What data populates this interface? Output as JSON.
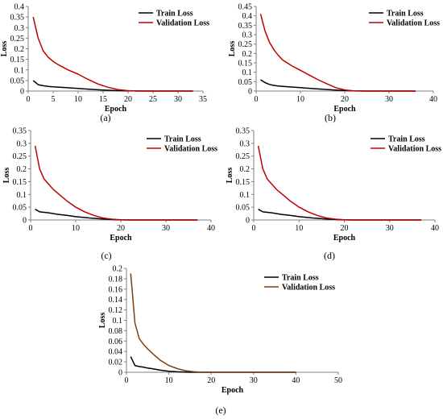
{
  "legend_labels": {
    "train": "Train Loss",
    "validation": "Validation Loss"
  },
  "chart_data": [
    {
      "type": "line",
      "caption": "(a)",
      "xlabel": "Epoch",
      "ylabel": "Loss",
      "xlim": [
        0,
        35
      ],
      "ylim": [
        0,
        0.4
      ],
      "xticks": [
        "0",
        "5",
        "10",
        "15",
        "20",
        "25",
        "30",
        "35"
      ],
      "yticks": [
        "0",
        "0.05",
        "0.1",
        "0.15",
        "0.2",
        "0.25",
        "0.3",
        "0.35",
        "0.4"
      ],
      "legend": "top-right",
      "series": [
        {
          "name": "Train Loss",
          "color": "#000000",
          "x": [
            1,
            2,
            3,
            4,
            5,
            7,
            10,
            12,
            15,
            18,
            20,
            25,
            30,
            33
          ],
          "y": [
            0.05,
            0.03,
            0.025,
            0.022,
            0.02,
            0.017,
            0.012,
            0.009,
            0.005,
            0.002,
            0.001,
            0,
            0,
            0
          ]
        },
        {
          "name": "Validation Loss",
          "color": "#c00000",
          "x": [
            1,
            2,
            3,
            4,
            5,
            6,
            8,
            10,
            12,
            14,
            16,
            18,
            20,
            22,
            25,
            30,
            33
          ],
          "y": [
            0.35,
            0.25,
            0.19,
            0.16,
            0.14,
            0.125,
            0.1,
            0.08,
            0.055,
            0.033,
            0.018,
            0.007,
            0.002,
            0,
            0,
            0,
            0
          ]
        }
      ]
    },
    {
      "type": "line",
      "caption": "(b)",
      "xlabel": "Epoch",
      "ylabel": "Loss",
      "xlim": [
        0,
        40
      ],
      "ylim": [
        0,
        0.45
      ],
      "xticks": [
        "0",
        "10",
        "20",
        "30",
        "40"
      ],
      "yticks": [
        "0",
        "0.05",
        "0.1",
        "0.15",
        "0.2",
        "0.25",
        "0.3",
        "0.35",
        "0.4",
        "0.45"
      ],
      "legend": "top-right",
      "series": [
        {
          "name": "Train Loss",
          "color": "#000000",
          "x": [
            1,
            2,
            3,
            4,
            5,
            7,
            10,
            13,
            16,
            19,
            22,
            25,
            30,
            36
          ],
          "y": [
            0.06,
            0.045,
            0.035,
            0.03,
            0.027,
            0.023,
            0.018,
            0.013,
            0.008,
            0.004,
            0.001,
            0,
            0,
            0
          ]
        },
        {
          "name": "Validation Loss",
          "color": "#c00000",
          "x": [
            1,
            2,
            3,
            4,
            5,
            6,
            8,
            10,
            12,
            14,
            16,
            18,
            20,
            22,
            25,
            30,
            36
          ],
          "y": [
            0.41,
            0.32,
            0.26,
            0.22,
            0.19,
            0.165,
            0.135,
            0.11,
            0.085,
            0.06,
            0.038,
            0.018,
            0.006,
            0.001,
            0,
            0,
            0
          ]
        }
      ]
    },
    {
      "type": "line",
      "caption": "(c)",
      "xlabel": "Epoch",
      "ylabel": "Loss",
      "xlim": [
        0,
        40
      ],
      "ylim": [
        0,
        0.35
      ],
      "xticks": [
        "0",
        "10",
        "20",
        "30",
        "40"
      ],
      "yticks": [
        "0",
        "0.05",
        "0.1",
        "0.15",
        "0.2",
        "0.25",
        "0.3",
        "0.35"
      ],
      "legend": "top-right",
      "series": [
        {
          "name": "Train Loss",
          "color": "#000000",
          "x": [
            1,
            2,
            3,
            4,
            6,
            8,
            10,
            13,
            16,
            19,
            22,
            25,
            30,
            37
          ],
          "y": [
            0.042,
            0.032,
            0.03,
            0.028,
            0.022,
            0.018,
            0.013,
            0.008,
            0.004,
            0.001,
            0,
            0,
            0,
            0
          ]
        },
        {
          "name": "Validation Loss",
          "color": "#c00000",
          "x": [
            1,
            2,
            3,
            4,
            5,
            6,
            8,
            10,
            12,
            14,
            16,
            18,
            20,
            22,
            25,
            30,
            37
          ],
          "y": [
            0.29,
            0.2,
            0.16,
            0.14,
            0.12,
            0.105,
            0.075,
            0.05,
            0.032,
            0.018,
            0.008,
            0.003,
            0.001,
            0,
            0,
            0,
            0
          ]
        }
      ]
    },
    {
      "type": "line",
      "caption": "(d)",
      "xlabel": "Epoch",
      "ylabel": "Loss",
      "xlim": [
        0,
        40
      ],
      "ylim": [
        0,
        0.35
      ],
      "xticks": [
        "0",
        "10",
        "20",
        "30",
        "40"
      ],
      "yticks": [
        "0",
        "0.05",
        "0.1",
        "0.15",
        "0.2",
        "0.25",
        "0.3",
        "0.35"
      ],
      "legend": "top-right",
      "series": [
        {
          "name": "Train Loss",
          "color": "#000000",
          "x": [
            1,
            2,
            3,
            4,
            6,
            8,
            10,
            13,
            16,
            19,
            22,
            25,
            30,
            37
          ],
          "y": [
            0.042,
            0.032,
            0.03,
            0.028,
            0.022,
            0.018,
            0.013,
            0.008,
            0.004,
            0.001,
            0,
            0,
            0,
            0
          ]
        },
        {
          "name": "Validation Loss",
          "color": "#c00000",
          "x": [
            1,
            2,
            3,
            4,
            5,
            6,
            8,
            10,
            12,
            14,
            16,
            18,
            20,
            22,
            25,
            30,
            37
          ],
          "y": [
            0.29,
            0.2,
            0.16,
            0.14,
            0.12,
            0.105,
            0.075,
            0.05,
            0.032,
            0.018,
            0.008,
            0.003,
            0.001,
            0,
            0,
            0,
            0
          ]
        }
      ]
    },
    {
      "type": "line",
      "caption": "(e)",
      "xlabel": "Epoch",
      "ylabel": "Loss",
      "xlim": [
        0,
        50
      ],
      "ylim": [
        0,
        0.2
      ],
      "xticks": [
        "0",
        "10",
        "20",
        "30",
        "40",
        "50"
      ],
      "yticks": [
        "0",
        "0.02",
        "0.04",
        "0.06",
        "0.08",
        "0.1",
        "0.12",
        "0.14",
        "0.16",
        "0.18",
        "0.2"
      ],
      "legend": "top-right",
      "series": [
        {
          "name": "Train Loss",
          "color": "#000000",
          "x": [
            1,
            2,
            3,
            4,
            5,
            6,
            8,
            10,
            12,
            15,
            20,
            30,
            40
          ],
          "y": [
            0.03,
            0.013,
            0.011,
            0.01,
            0.008,
            0.007,
            0.004,
            0.002,
            0.001,
            0,
            0,
            0,
            0
          ]
        },
        {
          "name": "Validation Loss",
          "color": "#7b3f12",
          "x": [
            1,
            2,
            3,
            4,
            5,
            6,
            7,
            8,
            10,
            12,
            14,
            16,
            18,
            20,
            30,
            40
          ],
          "y": [
            0.19,
            0.095,
            0.065,
            0.054,
            0.045,
            0.037,
            0.03,
            0.023,
            0.013,
            0.007,
            0.003,
            0.001,
            0,
            0,
            0,
            0
          ]
        }
      ]
    }
  ]
}
